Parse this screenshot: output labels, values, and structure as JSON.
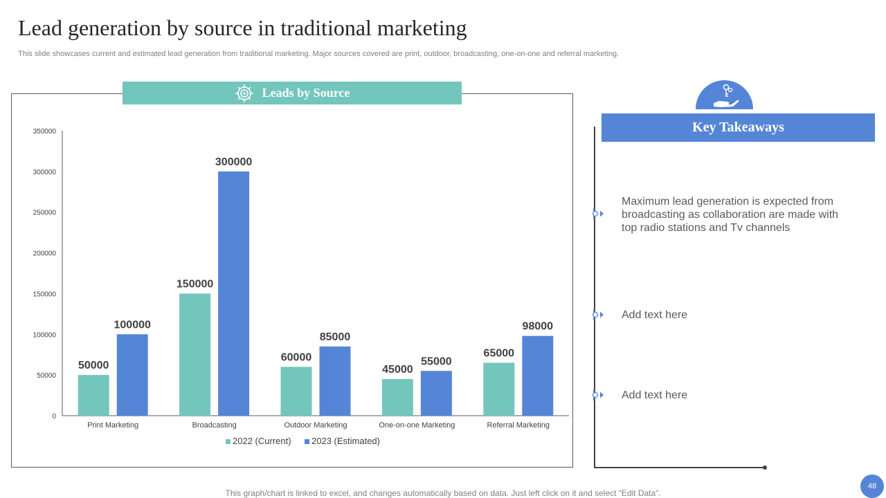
{
  "slide": {
    "title": "Lead generation by source in traditional marketing",
    "subtitle": "This slide showcases current and estimated lead generation from traditional marketing. Major sources covered are print, outdoor, broadcasting, one-on-one and referral marketing.",
    "footer": "This graph/chart is linked to excel, and changes automatically based on data. Just left click on it and select “Edit Data”.",
    "page_number": "48"
  },
  "chart_header": {
    "label": "Leads by Source",
    "icon": "target-icon"
  },
  "key_takeaways": {
    "title": "Key Takeaways",
    "icon": "hand-key-icon",
    "items": [
      "Maximum lead generation is expected from broadcasting as collaboration are made with top radio stations and Tv channels",
      "Add text here",
      "Add text here"
    ]
  },
  "colors": {
    "teal": "#73c6bc",
    "blue": "#5585d6",
    "text": "#595959"
  },
  "chart_data": {
    "type": "bar",
    "title": "Leads by Source",
    "categories": [
      "Print Marketing",
      "Broadcasting",
      "Outdoor Marketing",
      "One-on-one Marketing",
      "Referral Marketing"
    ],
    "series": [
      {
        "name": "2022 (Current)",
        "values": [
          50000,
          150000,
          60000,
          45000,
          65000
        ],
        "color": "#73c6bc"
      },
      {
        "name": "2023 (Estimated)",
        "values": [
          100000,
          300000,
          85000,
          55000,
          98000
        ],
        "color": "#5585d6"
      }
    ],
    "ylim": [
      0,
      350000
    ],
    "yticks": [
      0,
      50000,
      100000,
      150000,
      200000,
      250000,
      300000,
      350000
    ],
    "xlabel": "",
    "ylabel": "",
    "legend": "bottom",
    "data_labels": true
  }
}
